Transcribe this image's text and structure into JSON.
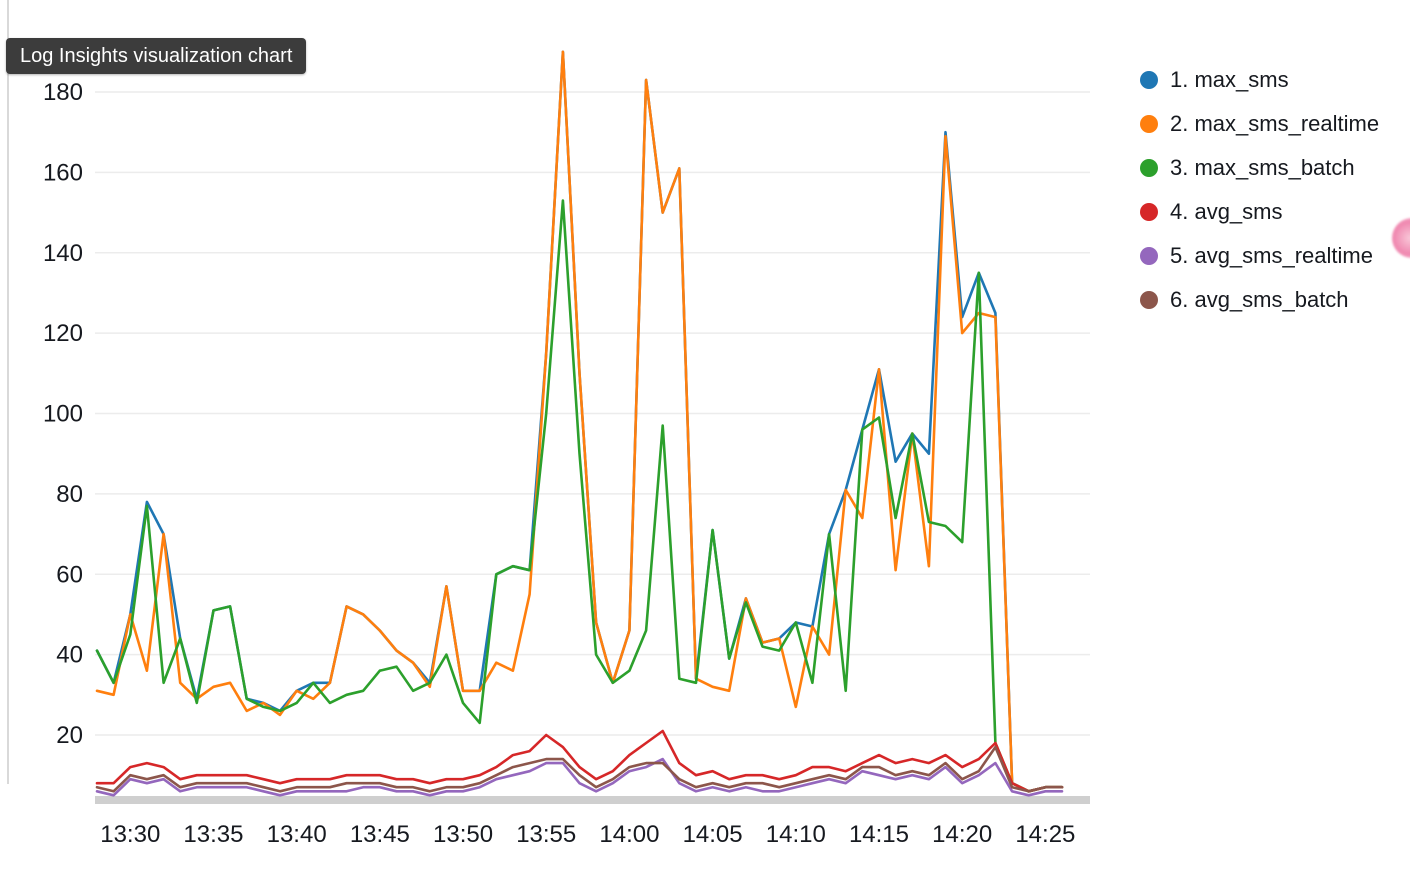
{
  "tooltip": {
    "label": "Log Insights visualization chart"
  },
  "legend": {
    "items": [
      {
        "label": "1. max_sms",
        "color": "#1f77b4"
      },
      {
        "label": "2. max_sms_realtime",
        "color": "#ff7f0e"
      },
      {
        "label": "3. max_sms_batch",
        "color": "#2ca02c"
      },
      {
        "label": "4. avg_sms",
        "color": "#d62728"
      },
      {
        "label": "5. avg_sms_realtime",
        "color": "#9467bd"
      },
      {
        "label": "6. avg_sms_batch",
        "color": "#8c564b"
      }
    ]
  },
  "chart_data": {
    "type": "line",
    "title": "Log Insights visualization chart",
    "xlabel": "",
    "ylabel": "",
    "grid": true,
    "legend_position": "right",
    "ylim": [
      0,
      195
    ],
    "y_ticks": [
      20,
      40,
      60,
      80,
      100,
      120,
      140,
      160,
      180
    ],
    "x_tick_labels": [
      "13:30",
      "13:35",
      "13:40",
      "13:45",
      "13:50",
      "13:55",
      "14:00",
      "14:05",
      "14:10",
      "14:15",
      "14:20",
      "14:25"
    ],
    "x": [
      "13:28",
      "13:29",
      "13:30",
      "13:31",
      "13:32",
      "13:33",
      "13:34",
      "13:35",
      "13:36",
      "13:37",
      "13:38",
      "13:39",
      "13:40",
      "13:41",
      "13:42",
      "13:43",
      "13:44",
      "13:45",
      "13:46",
      "13:47",
      "13:48",
      "13:49",
      "13:50",
      "13:51",
      "13:52",
      "13:53",
      "13:54",
      "13:55",
      "13:56",
      "13:57",
      "13:58",
      "13:59",
      "14:00",
      "14:01",
      "14:02",
      "14:03",
      "14:04",
      "14:05",
      "14:06",
      "14:07",
      "14:08",
      "14:09",
      "14:10",
      "14:11",
      "14:12",
      "14:13",
      "14:14",
      "14:15",
      "14:16",
      "14:17",
      "14:18",
      "14:19",
      "14:20",
      "14:21",
      "14:22",
      "14:23",
      "14:24",
      "14:25",
      "14:26"
    ],
    "series": [
      {
        "name": "max_sms",
        "color": "#1f77b4",
        "values": [
          41,
          33,
          50,
          78,
          70,
          44,
          29,
          51,
          52,
          29,
          28,
          26,
          31,
          33,
          33,
          52,
          50,
          46,
          41,
          38,
          33,
          57,
          31,
          31,
          60,
          62,
          61,
          115,
          190,
          110,
          48,
          33,
          46,
          183,
          150,
          161,
          34,
          71,
          39,
          54,
          43,
          44,
          48,
          47,
          70,
          81,
          96,
          111,
          88,
          95,
          90,
          170,
          124,
          135,
          125,
          8,
          6,
          7,
          7
        ]
      },
      {
        "name": "max_sms_realtime",
        "color": "#ff7f0e",
        "values": [
          31,
          30,
          50,
          36,
          70,
          33,
          29,
          32,
          33,
          26,
          28,
          25,
          31,
          29,
          33,
          52,
          50,
          46,
          41,
          38,
          32,
          57,
          31,
          31,
          38,
          36,
          55,
          115,
          190,
          110,
          48,
          33,
          46,
          183,
          150,
          161,
          34,
          32,
          31,
          54,
          43,
          44,
          27,
          47,
          40,
          81,
          74,
          111,
          61,
          95,
          62,
          169,
          120,
          125,
          124,
          8,
          6,
          7,
          7
        ]
      },
      {
        "name": "max_sms_batch",
        "color": "#2ca02c",
        "values": [
          41,
          33,
          45,
          77,
          33,
          44,
          28,
          51,
          52,
          29,
          27,
          26,
          28,
          33,
          28,
          30,
          31,
          36,
          37,
          31,
          33,
          40,
          28,
          23,
          60,
          62,
          61,
          100,
          153,
          90,
          40,
          33,
          36,
          46,
          97,
          34,
          33,
          71,
          39,
          53,
          42,
          41,
          48,
          33,
          70,
          31,
          96,
          99,
          74,
          95,
          73,
          72,
          68,
          135,
          18,
          8,
          6,
          7,
          7
        ]
      },
      {
        "name": "avg_sms",
        "color": "#d62728",
        "values": [
          8,
          8,
          12,
          13,
          12,
          9,
          10,
          10,
          10,
          10,
          9,
          8,
          9,
          9,
          9,
          10,
          10,
          10,
          9,
          9,
          8,
          9,
          9,
          10,
          12,
          15,
          16,
          20,
          17,
          12,
          9,
          11,
          15,
          18,
          21,
          13,
          10,
          11,
          9,
          10,
          10,
          9,
          10,
          12,
          12,
          11,
          13,
          15,
          13,
          14,
          13,
          15,
          12,
          14,
          18,
          8,
          6,
          7,
          7
        ]
      },
      {
        "name": "avg_sms_realtime",
        "color": "#9467bd",
        "values": [
          6,
          5,
          9,
          8,
          9,
          6,
          7,
          7,
          7,
          7,
          6,
          5,
          6,
          6,
          6,
          6,
          7,
          7,
          6,
          6,
          5,
          6,
          6,
          7,
          9,
          10,
          11,
          13,
          13,
          8,
          6,
          8,
          11,
          12,
          14,
          8,
          6,
          7,
          6,
          7,
          6,
          6,
          7,
          8,
          9,
          8,
          11,
          10,
          9,
          10,
          9,
          12,
          8,
          10,
          13,
          6,
          5,
          6,
          6
        ]
      },
      {
        "name": "avg_sms_batch",
        "color": "#8c564b",
        "values": [
          7,
          6,
          10,
          9,
          10,
          7,
          8,
          8,
          8,
          8,
          7,
          6,
          7,
          7,
          7,
          8,
          8,
          8,
          7,
          7,
          6,
          7,
          7,
          8,
          10,
          12,
          13,
          14,
          14,
          10,
          7,
          9,
          12,
          13,
          13,
          9,
          7,
          8,
          7,
          8,
          8,
          7,
          8,
          9,
          10,
          9,
          12,
          12,
          10,
          11,
          10,
          13,
          9,
          11,
          17,
          7,
          6,
          7,
          7
        ]
      }
    ]
  },
  "decorations": {
    "pointer_highlight_color": "#ec6a9c",
    "axis_baseline_color": "#cfcfcf",
    "gridline_color": "#ececec",
    "tick_label_color": "#16191f"
  }
}
